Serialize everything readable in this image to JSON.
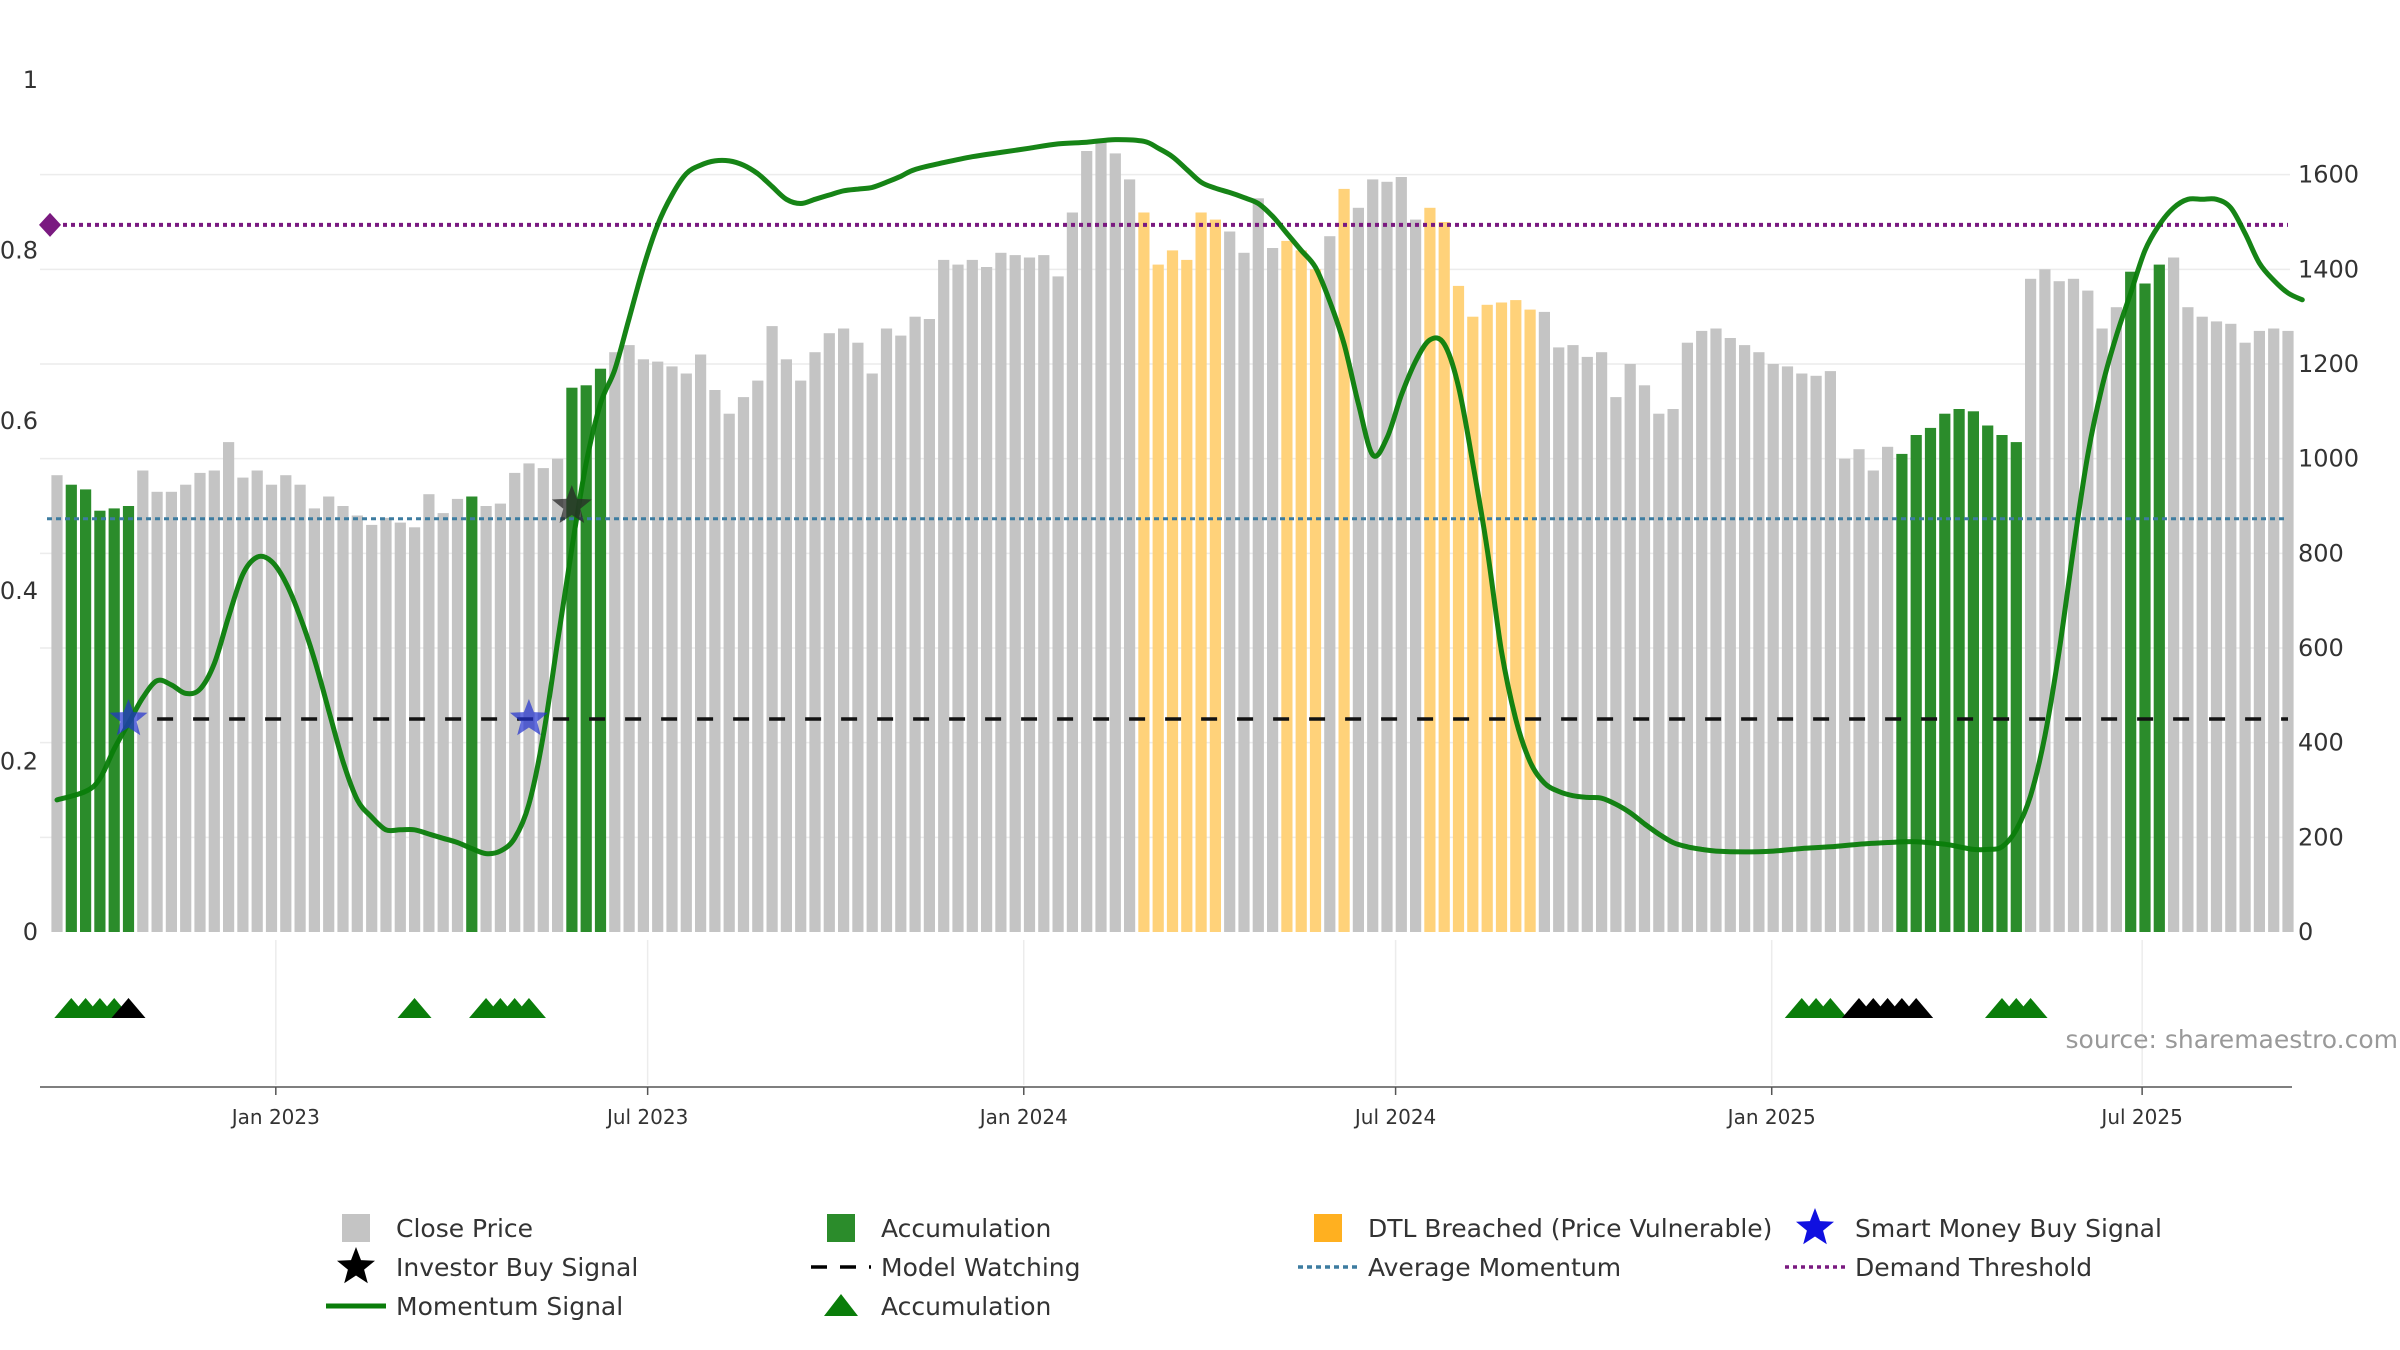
{
  "chart_data": {
    "type": "bar+line",
    "source_label": "source: sharemaestro.com",
    "x_ticks": [
      {
        "label": "Jan 2023",
        "week": 15.3
      },
      {
        "label": "Jul 2023",
        "week": 41.3
      },
      {
        "label": "Jan 2024",
        "week": 67.6
      },
      {
        "label": "Jul 2024",
        "week": 93.6
      },
      {
        "label": "Jan 2025",
        "week": 119.9
      },
      {
        "label": "Jul 2025",
        "week": 145.8
      }
    ],
    "left_axis": {
      "range": [
        0,
        1
      ],
      "ticks": [
        "0",
        "0.2",
        "0.4",
        "0.6",
        "0.8",
        "1"
      ]
    },
    "right_axis": {
      "range": [
        0,
        1800
      ],
      "ticks": [
        "0",
        "200",
        "400",
        "600",
        "800",
        "1000",
        "1200",
        "1400",
        "1600"
      ]
    },
    "colors": {
      "close": "#c4c4c4",
      "accumulation": "#2b8c2b",
      "dtl": "#ffd27a",
      "momentum": "#0a7d0a",
      "average": "#3d7ca0",
      "demand": "#7a1a80",
      "watching": "#111111",
      "smart_star": "#2232d0",
      "investor_star": "#2a2a2a",
      "acc_triangle": "#0a7d0a",
      "invest_triangle": "#000000"
    },
    "bar_states": "GAAAAAGGGGGGGGGGGGGGGGGGGGGGGAGGGGGGAAAGGGGGGGGGGGGGGGGGGGGGGGGGGGGGGGGGGGGGDDDDDDGGGGDDDGDGGGGGDDDDDDDDGGGGGGGGGGGGGGGGGGGGGGGGGAAAAAAAAAGGGGGGGAAAGGGGGGGGGGGGGGGGGGGG",
    "close_values": [
      965,
      945,
      935,
      890,
      895,
      900,
      975,
      930,
      930,
      945,
      970,
      975,
      1035,
      960,
      975,
      945,
      965,
      945,
      895,
      920,
      900,
      880,
      860,
      875,
      865,
      855,
      925,
      885,
      915,
      920,
      900,
      905,
      970,
      990,
      980,
      1000,
      1150,
      1155,
      1190,
      1225,
      1240,
      1210,
      1205,
      1195,
      1180,
      1220,
      1145,
      1095,
      1130,
      1165,
      1280,
      1210,
      1165,
      1225,
      1265,
      1275,
      1245,
      1180,
      1275,
      1260,
      1300,
      1295,
      1420,
      1410,
      1420,
      1405,
      1435,
      1430,
      1425,
      1430,
      1385,
      1520,
      1650,
      1670,
      1645,
      1590,
      1520,
      1410,
      1440,
      1420,
      1520,
      1505,
      1480,
      1435,
      1550,
      1445,
      1460,
      1440,
      1400,
      1470,
      1570,
      1530,
      1590,
      1585,
      1595,
      1505,
      1530,
      1500,
      1365,
      1300,
      1325,
      1330,
      1335,
      1315,
      1310,
      1235,
      1240,
      1215,
      1225,
      1130,
      1200,
      1155,
      1095,
      1105,
      1245,
      1270,
      1275,
      1255,
      1240,
      1225,
      1200,
      1195,
      1180,
      1175,
      1185,
      1000,
      1020,
      975,
      1025,
      1010,
      1050,
      1065,
      1095,
      1105,
      1100,
      1070,
      1050,
      1035,
      1380,
      1400,
      1375,
      1380,
      1355,
      1275,
      1320,
      1395,
      1370,
      1410,
      1425,
      1320,
      1300,
      1290,
      1285,
      1245,
      1270,
      1275,
      1270
    ],
    "momentum": [
      {
        "w": 0,
        "v": 0.155
      },
      {
        "w": 2,
        "v": 0.165
      },
      {
        "w": 3,
        "v": 0.18
      },
      {
        "w": 4,
        "v": 0.215
      },
      {
        "w": 5,
        "v": 0.245
      },
      {
        "w": 6,
        "v": 0.275
      },
      {
        "w": 7,
        "v": 0.295
      },
      {
        "w": 8,
        "v": 0.29
      },
      {
        "w": 9,
        "v": 0.28
      },
      {
        "w": 10,
        "v": 0.285
      },
      {
        "w": 11,
        "v": 0.315
      },
      {
        "w": 12,
        "v": 0.37
      },
      {
        "w": 13,
        "v": 0.42
      },
      {
        "w": 14,
        "v": 0.44
      },
      {
        "w": 15,
        "v": 0.435
      },
      {
        "w": 16,
        "v": 0.41
      },
      {
        "w": 17,
        "v": 0.37
      },
      {
        "w": 18,
        "v": 0.32
      },
      {
        "w": 19,
        "v": 0.26
      },
      {
        "w": 20,
        "v": 0.2
      },
      {
        "w": 21,
        "v": 0.155
      },
      {
        "w": 22,
        "v": 0.135
      },
      {
        "w": 23,
        "v": 0.12
      },
      {
        "w": 24,
        "v": 0.12
      },
      {
        "w": 25,
        "v": 0.12
      },
      {
        "w": 26,
        "v": 0.115
      },
      {
        "w": 27,
        "v": 0.11
      },
      {
        "w": 28,
        "v": 0.105
      },
      {
        "w": 29,
        "v": 0.098
      },
      {
        "w": 30,
        "v": 0.092
      },
      {
        "w": 31,
        "v": 0.095
      },
      {
        "w": 32,
        "v": 0.11
      },
      {
        "w": 33,
        "v": 0.15
      },
      {
        "w": 34,
        "v": 0.23
      },
      {
        "w": 35,
        "v": 0.34
      },
      {
        "w": 36,
        "v": 0.45
      },
      {
        "w": 37,
        "v": 0.55
      },
      {
        "w": 38,
        "v": 0.62
      },
      {
        "w": 39,
        "v": 0.66
      },
      {
        "w": 40,
        "v": 0.72
      },
      {
        "w": 41,
        "v": 0.78
      },
      {
        "w": 42,
        "v": 0.83
      },
      {
        "w": 43,
        "v": 0.865
      },
      {
        "w": 44,
        "v": 0.89
      },
      {
        "w": 45,
        "v": 0.9
      },
      {
        "w": 46,
        "v": 0.905
      },
      {
        "w": 47,
        "v": 0.905
      },
      {
        "w": 48,
        "v": 0.9
      },
      {
        "w": 49,
        "v": 0.89
      },
      {
        "w": 50,
        "v": 0.875
      },
      {
        "w": 51,
        "v": 0.86
      },
      {
        "w": 52,
        "v": 0.855
      },
      {
        "w": 53,
        "v": 0.86
      },
      {
        "w": 54,
        "v": 0.865
      },
      {
        "w": 55,
        "v": 0.87
      },
      {
        "w": 56,
        "v": 0.872
      },
      {
        "w": 57,
        "v": 0.874
      },
      {
        "w": 58,
        "v": 0.88
      },
      {
        "w": 59,
        "v": 0.887
      },
      {
        "w": 60,
        "v": 0.895
      },
      {
        "w": 62,
        "v": 0.903
      },
      {
        "w": 64,
        "v": 0.91
      },
      {
        "w": 66,
        "v": 0.915
      },
      {
        "w": 68,
        "v": 0.92
      },
      {
        "w": 70,
        "v": 0.925
      },
      {
        "w": 72,
        "v": 0.927
      },
      {
        "w": 74,
        "v": 0.93
      },
      {
        "w": 76,
        "v": 0.928
      },
      {
        "w": 77,
        "v": 0.92
      },
      {
        "w": 78,
        "v": 0.91
      },
      {
        "w": 79,
        "v": 0.895
      },
      {
        "w": 80,
        "v": 0.88
      },
      {
        "w": 81,
        "v": 0.873
      },
      {
        "w": 82,
        "v": 0.868
      },
      {
        "w": 83,
        "v": 0.862
      },
      {
        "w": 84,
        "v": 0.855
      },
      {
        "w": 85,
        "v": 0.84
      },
      {
        "w": 86,
        "v": 0.82
      },
      {
        "w": 87,
        "v": 0.8
      },
      {
        "w": 88,
        "v": 0.78
      },
      {
        "w": 89,
        "v": 0.74
      },
      {
        "w": 90,
        "v": 0.69
      },
      {
        "w": 91,
        "v": 0.62
      },
      {
        "w": 92,
        "v": 0.56
      },
      {
        "w": 93,
        "v": 0.58
      },
      {
        "w": 94,
        "v": 0.63
      },
      {
        "w": 95,
        "v": 0.67
      },
      {
        "w": 96,
        "v": 0.695
      },
      {
        "w": 97,
        "v": 0.69
      },
      {
        "w": 98,
        "v": 0.64
      },
      {
        "w": 99,
        "v": 0.55
      },
      {
        "w": 100,
        "v": 0.45
      },
      {
        "w": 101,
        "v": 0.33
      },
      {
        "w": 102,
        "v": 0.25
      },
      {
        "w": 103,
        "v": 0.2
      },
      {
        "w": 104,
        "v": 0.175
      },
      {
        "w": 105,
        "v": 0.165
      },
      {
        "w": 106,
        "v": 0.16
      },
      {
        "w": 107,
        "v": 0.158
      },
      {
        "w": 108,
        "v": 0.157
      },
      {
        "w": 109,
        "v": 0.15
      },
      {
        "w": 110,
        "v": 0.14
      },
      {
        "w": 111,
        "v": 0.127
      },
      {
        "w": 112,
        "v": 0.115
      },
      {
        "w": 113,
        "v": 0.105
      },
      {
        "w": 114,
        "v": 0.1
      },
      {
        "w": 115,
        "v": 0.097
      },
      {
        "w": 116,
        "v": 0.095
      },
      {
        "w": 118,
        "v": 0.094
      },
      {
        "w": 120,
        "v": 0.095
      },
      {
        "w": 122,
        "v": 0.098
      },
      {
        "w": 124,
        "v": 0.1
      },
      {
        "w": 126,
        "v": 0.103
      },
      {
        "w": 128,
        "v": 0.105
      },
      {
        "w": 130,
        "v": 0.106
      },
      {
        "w": 132,
        "v": 0.103
      },
      {
        "w": 133,
        "v": 0.1
      },
      {
        "w": 134,
        "v": 0.097
      },
      {
        "w": 135,
        "v": 0.097
      },
      {
        "w": 136,
        "v": 0.1
      },
      {
        "w": 137,
        "v": 0.12
      },
      {
        "w": 138,
        "v": 0.16
      },
      {
        "w": 139,
        "v": 0.23
      },
      {
        "w": 140,
        "v": 0.33
      },
      {
        "w": 141,
        "v": 0.45
      },
      {
        "w": 142,
        "v": 0.56
      },
      {
        "w": 143,
        "v": 0.64
      },
      {
        "w": 144,
        "v": 0.7
      },
      {
        "w": 145,
        "v": 0.75
      },
      {
        "w": 146,
        "v": 0.8
      },
      {
        "w": 147,
        "v": 0.83
      },
      {
        "w": 148,
        "v": 0.85
      },
      {
        "w": 149,
        "v": 0.86
      },
      {
        "w": 150,
        "v": 0.86
      },
      {
        "w": 151,
        "v": 0.86
      },
      {
        "w": 152,
        "v": 0.85
      },
      {
        "w": 153,
        "v": 0.82
      },
      {
        "w": 154,
        "v": 0.785
      },
      {
        "w": 155,
        "v": 0.765
      },
      {
        "w": 156,
        "v": 0.75
      },
      {
        "w": 157,
        "v": 0.742
      }
    ],
    "average_momentum": 0.485,
    "demand_threshold": 0.83,
    "model_watching": {
      "value": 0.25,
      "start_week": 7
    },
    "smart_money_buy_signals": [
      {
        "week": 5,
        "value": 0.25
      },
      {
        "week": 33,
        "value": 0.25
      }
    ],
    "investor_buy_signals": [
      {
        "week": 36,
        "value": 0.5
      }
    ],
    "accumulation_triangles": [
      1,
      2,
      3,
      4,
      25,
      30,
      31,
      32,
      33,
      122,
      123,
      124,
      136,
      137,
      138
    ],
    "investor_triangles": [
      5,
      126,
      127,
      128,
      129,
      130
    ],
    "legend": [
      {
        "label": "Close Price",
        "icon": "gray-square"
      },
      {
        "label": "Investor Buy Signal",
        "icon": "black-star"
      },
      {
        "label": "Momentum Signal",
        "icon": "green-line"
      },
      {
        "label": "Accumulation",
        "icon": "green-square"
      },
      {
        "label": "Model Watching",
        "icon": "black-dash"
      },
      {
        "label": "Accumulation",
        "icon": "green-triangle"
      },
      {
        "label": "DTL Breached (Price Vulnerable)",
        "icon": "orange-square"
      },
      {
        "label": "Average Momentum",
        "icon": "blue-dotted"
      },
      {
        "label": "Smart Money Buy Signal",
        "icon": "blue-star"
      },
      {
        "label": "Demand Threshold",
        "icon": "purple-dotted"
      }
    ]
  }
}
